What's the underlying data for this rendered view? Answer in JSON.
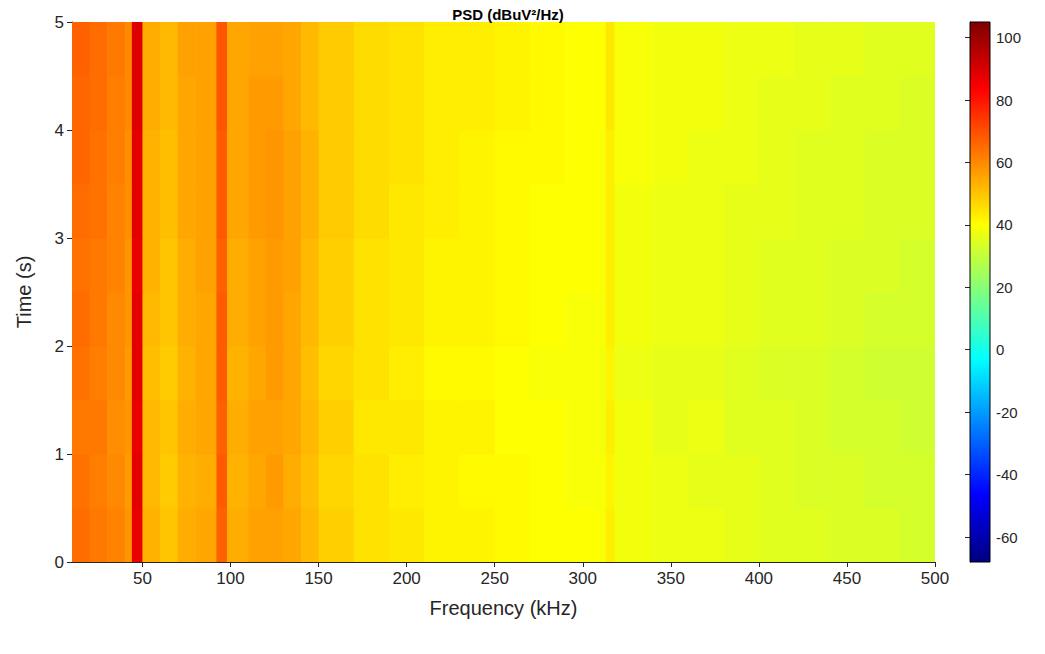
{
  "chart_data": {
    "type": "heatmap",
    "title": "PSD (dBuV²/Hz)",
    "x_label": "Frequency (kHz)",
    "y_label": "Time (s)",
    "xlim": [
      10,
      500
    ],
    "xticks": [
      50,
      100,
      150,
      200,
      250,
      300,
      350,
      400,
      450,
      500
    ],
    "ylim": [
      0,
      5
    ],
    "yticks": [
      0,
      1,
      2,
      3,
      4,
      5
    ],
    "grid": false,
    "x_edges": [
      10,
      20,
      30,
      40,
      44,
      50,
      60,
      70,
      80,
      92,
      98,
      110,
      120,
      130,
      140,
      150,
      170,
      190,
      210,
      230,
      250,
      270,
      290,
      310,
      313,
      318,
      340,
      360,
      380,
      400,
      420,
      440,
      460,
      480,
      500
    ],
    "y_edges": [
      0,
      0.5,
      1,
      1.5,
      2,
      2.5,
      3,
      3.5,
      4,
      4.5,
      5
    ],
    "values": [
      [
        65,
        63,
        61,
        58,
        87,
        53,
        50,
        54,
        55,
        67,
        54,
        56,
        56,
        55,
        52,
        48,
        45,
        44,
        42,
        42,
        41,
        40,
        40,
        39,
        43,
        38,
        37,
        37,
        36,
        35,
        35,
        34,
        34,
        33
      ],
      [
        64,
        62,
        60,
        57,
        88,
        52,
        49,
        53,
        54,
        68,
        53,
        55,
        57,
        54,
        51,
        47,
        45,
        43,
        42,
        41,
        41,
        40,
        39,
        39,
        42,
        38,
        37,
        36,
        36,
        35,
        34,
        34,
        33,
        33
      ],
      [
        63,
        63,
        59,
        58,
        87,
        52,
        50,
        54,
        55,
        67,
        54,
        56,
        56,
        55,
        52,
        48,
        44,
        44,
        42,
        42,
        40,
        40,
        39,
        38,
        43,
        38,
        36,
        37,
        35,
        35,
        34,
        33,
        33,
        32
      ],
      [
        64,
        62,
        60,
        57,
        88,
        51,
        49,
        53,
        55,
        68,
        53,
        55,
        57,
        55,
        51,
        47,
        45,
        43,
        41,
        41,
        40,
        39,
        39,
        38,
        42,
        37,
        36,
        36,
        35,
        34,
        34,
        33,
        32,
        32
      ],
      [
        65,
        63,
        60,
        58,
        88,
        52,
        50,
        54,
        55,
        68,
        54,
        56,
        57,
        55,
        52,
        48,
        45,
        44,
        42,
        42,
        41,
        40,
        39,
        39,
        43,
        38,
        37,
        37,
        36,
        35,
        35,
        34,
        33,
        33
      ],
      [
        64,
        63,
        61,
        58,
        87,
        53,
        50,
        54,
        56,
        67,
        54,
        56,
        57,
        56,
        52,
        48,
        45,
        44,
        42,
        42,
        41,
        40,
        40,
        39,
        43,
        38,
        37,
        37,
        36,
        35,
        35,
        34,
        34,
        33
      ],
      [
        65,
        64,
        61,
        59,
        88,
        53,
        51,
        55,
        56,
        68,
        55,
        57,
        58,
        56,
        53,
        49,
        46,
        44,
        43,
        42,
        41,
        40,
        40,
        39,
        43,
        38,
        37,
        37,
        36,
        36,
        35,
        35,
        34,
        34
      ],
      [
        66,
        64,
        62,
        59,
        88,
        53,
        51,
        55,
        56,
        68,
        55,
        57,
        58,
        56,
        53,
        49,
        46,
        45,
        43,
        42,
        41,
        41,
        40,
        39,
        43,
        39,
        38,
        37,
        37,
        36,
        35,
        35,
        34,
        34
      ],
      [
        66,
        65,
        62,
        60,
        89,
        54,
        52,
        55,
        56,
        69,
        55,
        57,
        57,
        55,
        52,
        49,
        46,
        45,
        43,
        43,
        42,
        41,
        40,
        40,
        44,
        39,
        38,
        38,
        37,
        36,
        36,
        35,
        35,
        34
      ],
      [
        67,
        65,
        63,
        60,
        89,
        54,
        52,
        56,
        56,
        69,
        55,
        56,
        56,
        55,
        52,
        49,
        46,
        45,
        43,
        43,
        42,
        41,
        40,
        40,
        44,
        39,
        38,
        38,
        37,
        37,
        36,
        36,
        35,
        35
      ]
    ],
    "colorbar": {
      "lim": [
        -68,
        105
      ],
      "ticks": [
        -60,
        -40,
        -20,
        0,
        20,
        40,
        60,
        80,
        100
      ]
    }
  }
}
